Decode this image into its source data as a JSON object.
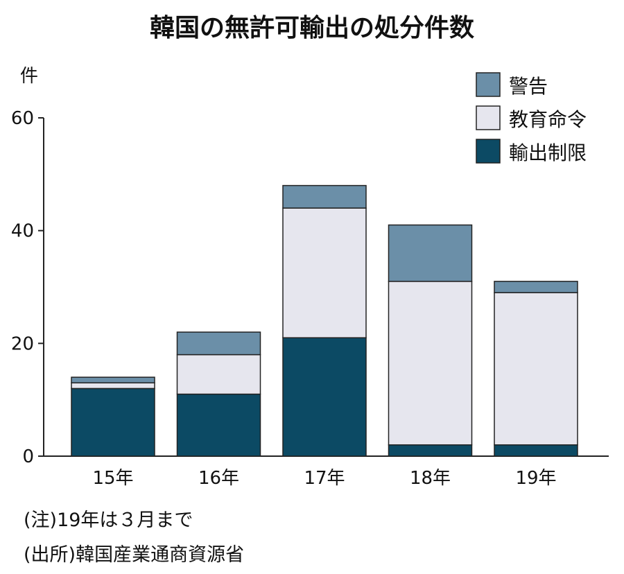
{
  "chart_data": {
    "type": "bar",
    "stacked": true,
    "title": "韓国の無許可輸出の処分件数",
    "ylabel": "件",
    "ylim": [
      0,
      60
    ],
    "yticks": [
      0,
      20,
      40,
      60
    ],
    "categories": [
      "15年",
      "16年",
      "17年",
      "18年",
      "19年"
    ],
    "series": [
      {
        "name": "輸出制限",
        "color": "#0c4a64",
        "values": [
          12,
          11,
          21,
          2,
          2
        ]
      },
      {
        "name": "教育命令",
        "color": "#e6e6ee",
        "values": [
          1,
          7,
          23,
          29,
          27
        ]
      },
      {
        "name": "警告",
        "color": "#6b8fa8",
        "values": [
          1,
          4,
          4,
          10,
          2
        ]
      }
    ],
    "legend_position": "top-right",
    "legend_order": [
      "警告",
      "教育命令",
      "輸出制限"
    ],
    "grid": false
  },
  "notes": {
    "note1": "(注)19年は３月まで",
    "source": "(出所)韓国産業通商資源省"
  }
}
